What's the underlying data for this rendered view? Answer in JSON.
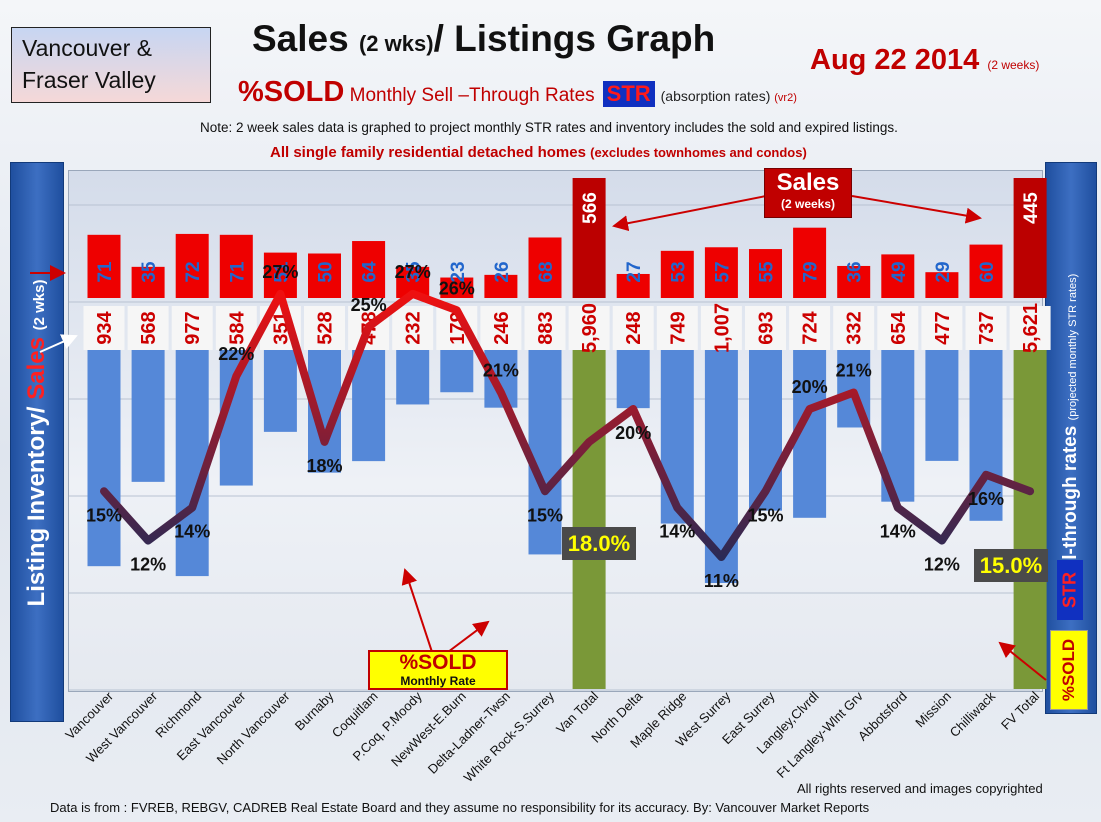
{
  "region": "Vancouver & Fraser Valley",
  "title_main": "Sales",
  "title_small": "(2 wks)",
  "title_rest": "/ Listings Graph",
  "date_main": "Aug 22 2014",
  "date_small": "(2 weeks)",
  "subtitle": {
    "sold": "%SOLD",
    "mid": " Monthly Sell –Through Rates",
    "str": "STR",
    "absorption": "(absorption rates)",
    "version": "(vr2)"
  },
  "note": "Note: 2 week sales data is graphed to project monthly STR rates and inventory includes the sold and expired listings.",
  "note2_main": "All single family residential detached homes",
  "note2_small": "(excludes townhomes and condos)",
  "left_axis": {
    "part1": "Listing Inventory/ ",
    "part2": "Sales",
    "part3": "(2 wks)"
  },
  "right_axis": {
    "main": "Sell-through rates",
    "small": "(projected monthly STR rates)",
    "str": "STR",
    "sold": "%SOLD"
  },
  "sold_tag": {
    "main": "%SOLD",
    "sub": "Monthly Rate"
  },
  "sales_callout": {
    "main": "Sales",
    "sub": "(2 weeks)"
  },
  "van_total_str": "18.0%",
  "fv_total_str": "15.0%",
  "rights": "All rights reserved and  images copyrighted",
  "source": "Data is from : FVREB, REBGV, CADREB Real Estate Board and they assume no responsibility for its accuracy. By: Vancouver Market Reports",
  "colors": {
    "sales_bar": "#ee0000",
    "inventory_bar": "#5588d8",
    "total_bar": "#7a9838",
    "sales_total_bar": "#bb0000",
    "sales_label": "#2266cc",
    "inventory_label": "#cc0000",
    "str_high": "#ee1010",
    "str_low": "#2b2a55"
  },
  "chart_data": {
    "type": "bar",
    "categories": [
      "Vancouver",
      "West Vancouver",
      "Richmond",
      "East Vancouver",
      "North Vancouver",
      "Burnaby",
      "Coquitlam",
      "P.Coq, P.Moody",
      "NewWest-E.Burn",
      "Delta-Ladner-Twsn",
      "White Rock-S.Surrey",
      "Van Total",
      "North Delta",
      "Maple Ridge",
      "West Surrey",
      "East Surrey",
      "Langley,Clvrdl",
      "Ft Langley-Wlnt Grv",
      "Abbotsford",
      "Mission",
      "Chilliwack",
      "FV Total"
    ],
    "series": [
      {
        "name": "Sales",
        "values": [
          71,
          35,
          72,
          71,
          51,
          50,
          64,
          35,
          23,
          26,
          68,
          566,
          27,
          53,
          57,
          55,
          79,
          36,
          49,
          29,
          60,
          445
        ]
      },
      {
        "name": "Inventory",
        "labels": [
          "934",
          "568",
          "977",
          "584",
          "351",
          "528",
          "478",
          "232",
          "179",
          "246",
          "883",
          "5,960",
          "248",
          "749",
          "1,007",
          "693",
          "724",
          "332",
          "654",
          "477",
          "737",
          "5,621"
        ],
        "values": [
          934,
          568,
          977,
          584,
          351,
          528,
          478,
          232,
          179,
          246,
          883,
          5960,
          248,
          749,
          1007,
          693,
          724,
          332,
          654,
          477,
          737,
          5621
        ]
      },
      {
        "name": "%SOLD",
        "labels": [
          "15%",
          "12%",
          "14%",
          "22%",
          "27%",
          "18%",
          "25%",
          "27%",
          "26%",
          "21%",
          "15%",
          "",
          "20%",
          "14%",
          "11%",
          "15%",
          "20%",
          "21%",
          "14%",
          "12%",
          "16%",
          ""
        ],
        "values": [
          15,
          12,
          14,
          22,
          27,
          18,
          25,
          27,
          26,
          21,
          15,
          18,
          20,
          14,
          11,
          15,
          20,
          21,
          14,
          12,
          16,
          15
        ]
      }
    ]
  }
}
